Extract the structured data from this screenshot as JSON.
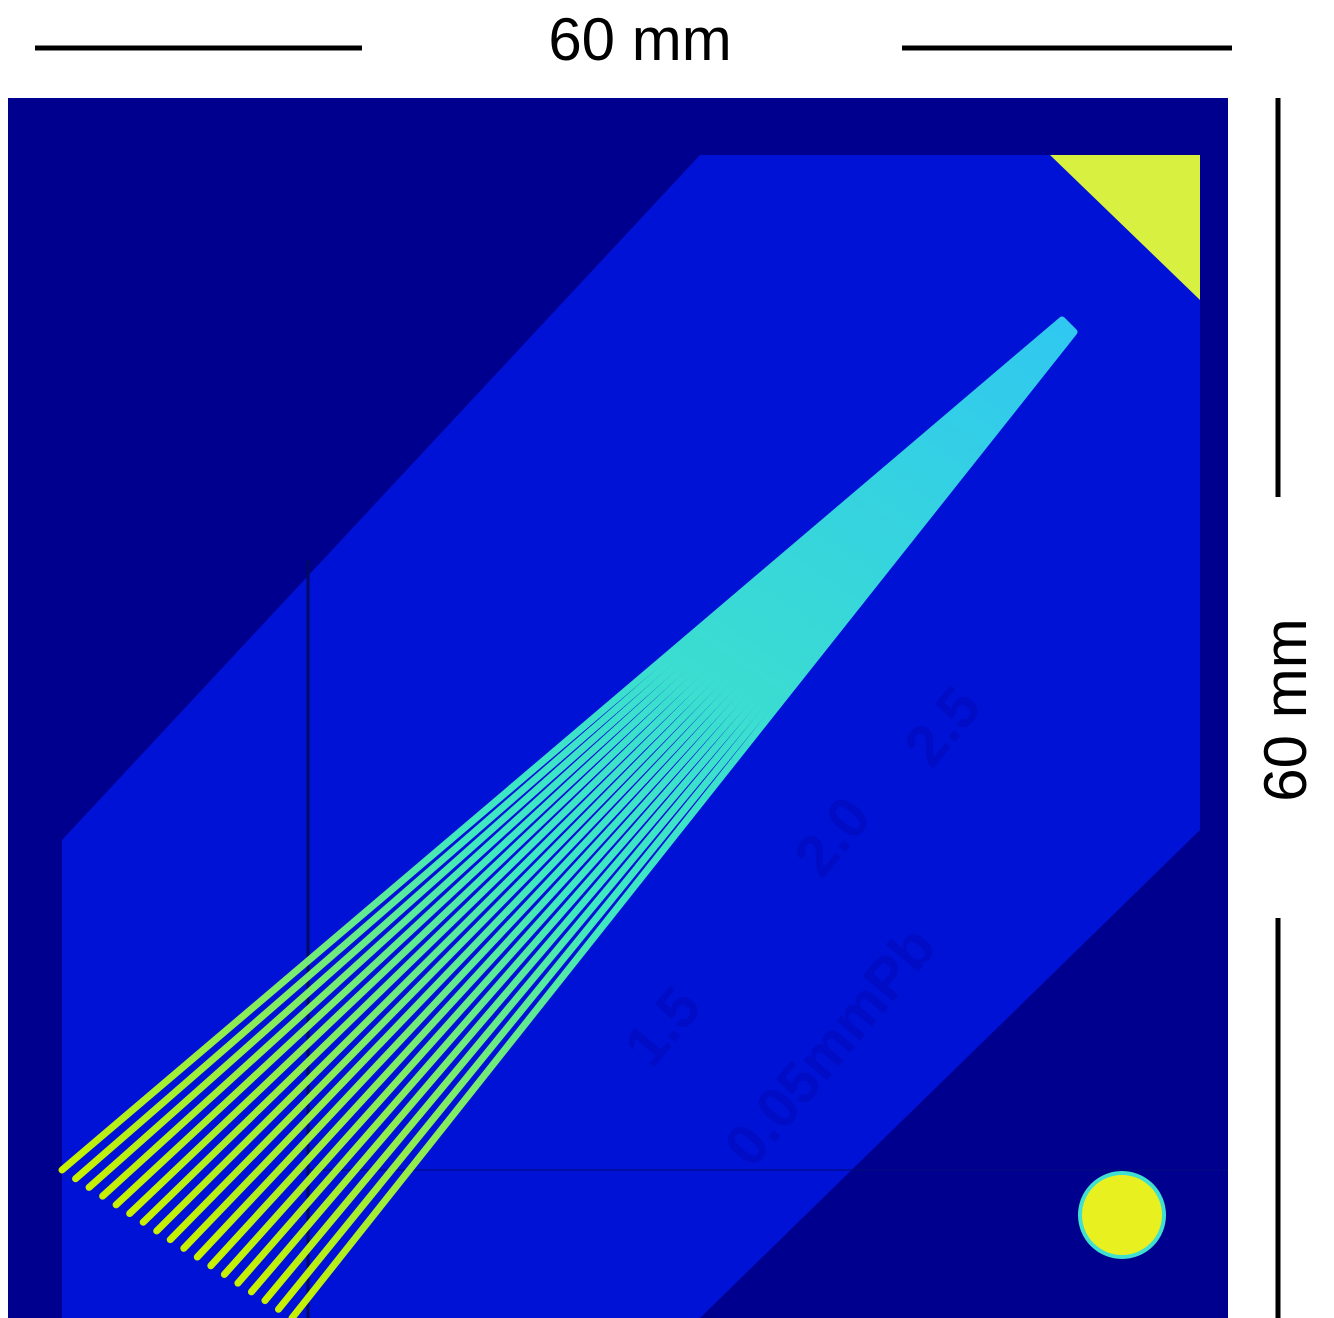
{
  "scale": {
    "horizontal": "60 mm",
    "vertical": "60 mm"
  },
  "phantom_labels": [
    "1.5",
    "2.0",
    "2.5",
    "0.05mmPb"
  ]
}
